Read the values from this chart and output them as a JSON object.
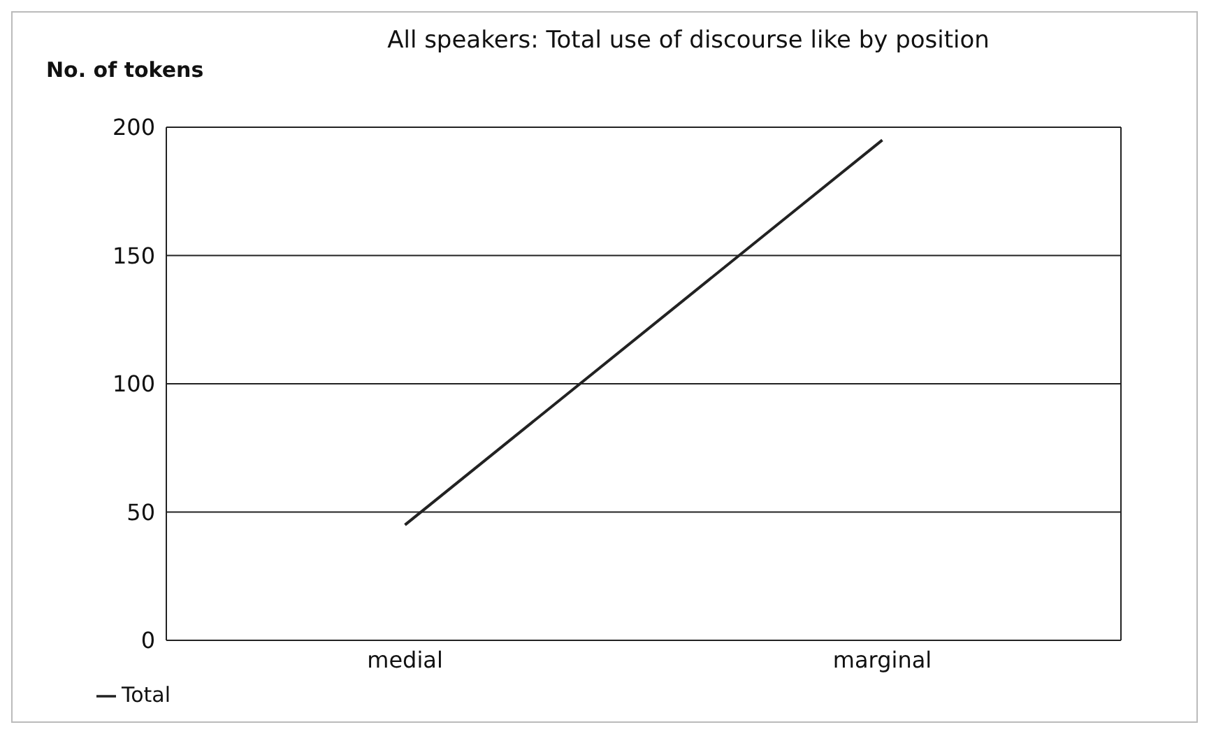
{
  "chart_data": {
    "type": "line",
    "title": "All speakers: Total use of discourse like by position",
    "ylabel": "No. of tokens",
    "categories": [
      "medial",
      "marginal"
    ],
    "series": [
      {
        "name": "Total",
        "color": "#222222",
        "values": [
          45,
          195
        ]
      }
    ],
    "ylim": [
      0,
      200
    ],
    "yticks": [
      0,
      50,
      100,
      150,
      200
    ],
    "grid": "y",
    "legend": "bottom left",
    "marker": "none",
    "line_style": "solid"
  }
}
